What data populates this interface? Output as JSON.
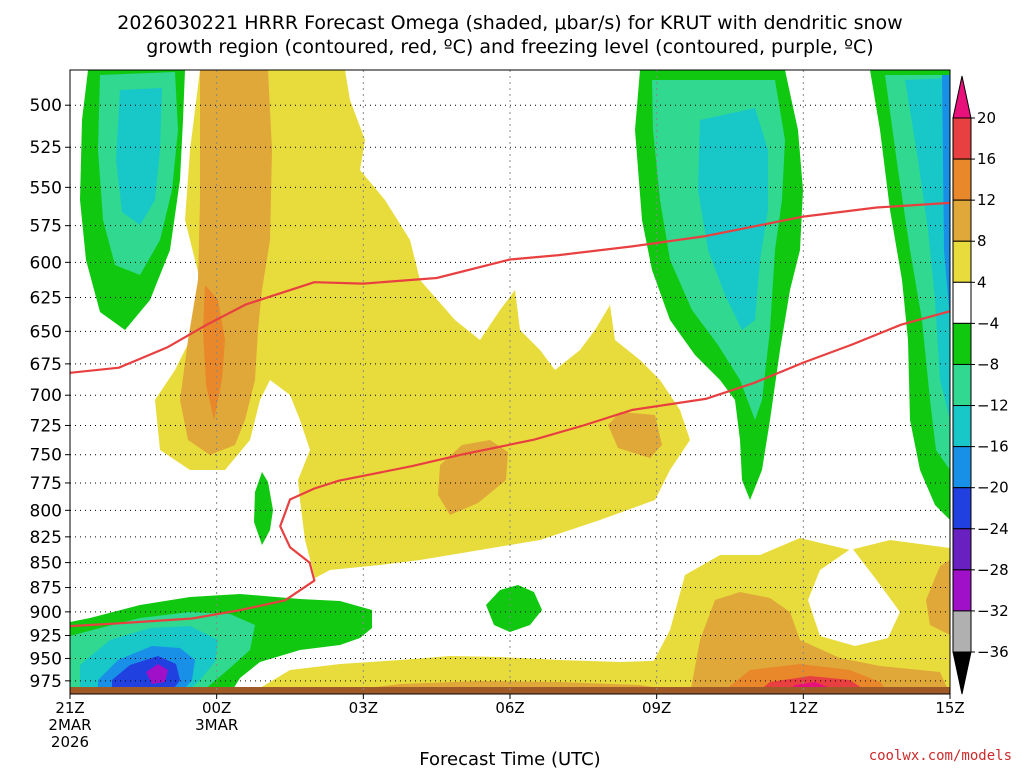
{
  "title_line1": "2026030221 HRRR Forecast Omega (shaded, μbar/s) for KRUT with dendritic snow",
  "title_line2": "growth region (contoured, red, ºC) and freezing level (contoured, purple, ºC)",
  "credit": "coolwx.com/models",
  "chart_data": {
    "type": "heatmap",
    "title": "2026030221 HRRR Forecast Omega (shaded, μbar/s) for KRUT with dendritic snow growth region (contoured, red, ºC) and freezing level (contoured, purple, ºC)",
    "xlabel": "Forecast Time (UTC)",
    "ylabel": "",
    "y_ticks": [
      500,
      525,
      550,
      575,
      600,
      625,
      650,
      675,
      700,
      725,
      750,
      775,
      800,
      825,
      850,
      875,
      900,
      925,
      950,
      975
    ],
    "ylim": [
      480,
      990
    ],
    "y_inverted": true,
    "y_scale": "log",
    "x_ticks": [
      {
        "h": 0,
        "label": "21Z",
        "line2": "2MAR",
        "line3": "2026"
      },
      {
        "h": 3,
        "label": "00Z",
        "line2": "3MAR",
        "line3": ""
      },
      {
        "h": 6,
        "label": "03Z",
        "line2": "",
        "line3": ""
      },
      {
        "h": 9,
        "label": "06Z",
        "line2": "",
        "line3": ""
      },
      {
        "h": 12,
        "label": "09Z",
        "line2": "",
        "line3": ""
      },
      {
        "h": 15,
        "label": "12Z",
        "line2": "",
        "line3": ""
      },
      {
        "h": 18,
        "label": "15Z",
        "line2": "",
        "line3": ""
      }
    ],
    "xlim": [
      0,
      18
    ],
    "grid": true,
    "colorbar": {
      "labels": [
        "20",
        "16",
        "12",
        "8",
        "4",
        "−4",
        "−8",
        "−12",
        "−16",
        "−20",
        "−24",
        "−28",
        "−32",
        "−36"
      ],
      "colors": [
        "#e8107a",
        "#e84040",
        "#e8882a",
        "#e0a838",
        "#e8dc3c",
        "#ffffff",
        "#10c810",
        "#30d890",
        "#18c8c8",
        "#1890e8",
        "#2040e0",
        "#6820c0",
        "#a010c8",
        "#b0b0b0"
      ],
      "top_triangle_color": "#e8107a",
      "bottom_triangle_color": "#000000"
    },
    "series": [
      {
        "name": "dendritic snow growth region",
        "color": "#e84040",
        "points": [
          [
            0,
            682
          ],
          [
            1,
            678
          ],
          [
            2,
            662
          ],
          [
            2.8,
            645
          ],
          [
            3.6,
            630
          ],
          [
            5,
            614
          ],
          [
            6,
            615
          ],
          [
            7.5,
            611
          ],
          [
            9,
            598
          ],
          [
            10,
            595
          ],
          [
            11.5,
            589
          ],
          [
            13,
            582
          ],
          [
            15,
            569
          ],
          [
            16.5,
            563
          ],
          [
            18,
            560
          ]
        ]
      },
      {
        "name": "dendritic snow growth region",
        "color": "#e84040",
        "points": [
          [
            0,
            915
          ],
          [
            1,
            912
          ],
          [
            2.5,
            907
          ],
          [
            3.5,
            898
          ],
          [
            4.4,
            888
          ],
          [
            5,
            868
          ],
          [
            4.9,
            850
          ],
          [
            4.5,
            835
          ],
          [
            4.3,
            815
          ],
          [
            4.5,
            790
          ],
          [
            5,
            780
          ],
          [
            5.5,
            773
          ],
          [
            7,
            760
          ],
          [
            8,
            750
          ],
          [
            9.5,
            737
          ],
          [
            10.5,
            725
          ],
          [
            11.5,
            712
          ],
          [
            13,
            703
          ],
          [
            14,
            690
          ],
          [
            15,
            674
          ],
          [
            16,
            660
          ],
          [
            17,
            645
          ],
          [
            18,
            635
          ]
        ]
      }
    ],
    "regions": [
      {
        "name": "omega shading",
        "values_in_ubar_per_s": "4 to 20 (rising)",
        "color": "#e8dc3c"
      },
      {
        "name": "omega shading",
        "values_in_ubar_per_s": "-4 to -36 (sinking)",
        "color": "#10c810"
      }
    ]
  }
}
